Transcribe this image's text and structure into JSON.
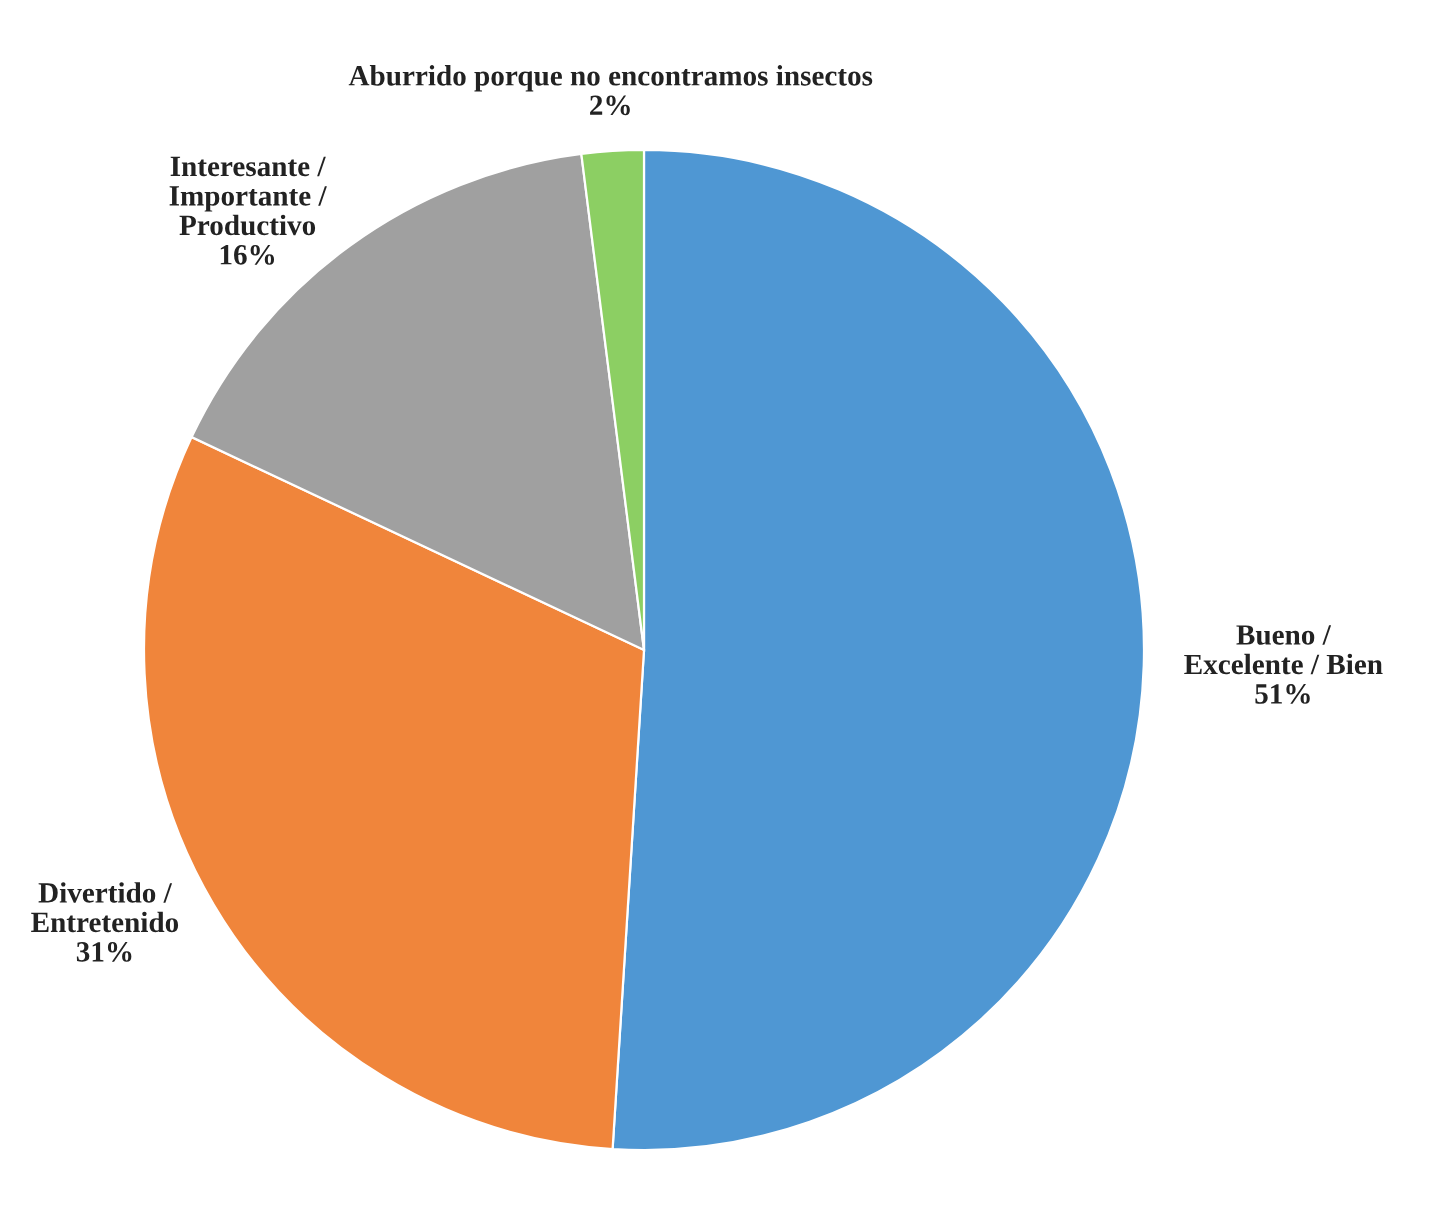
{
  "chart_data": {
    "type": "pie",
    "categories": [
      "Bueno /\nExcelente / Bien",
      "Divertido /\nEntretenido",
      "Interesante /\nImportante /\nProductivo",
      "Aburrido porque no encontramos insectos"
    ],
    "values": [
      51,
      31,
      16,
      2
    ],
    "value_labels": [
      "51%",
      "31%",
      "16%",
      "2%"
    ],
    "colors": [
      "#4f97d3",
      "#f0853b",
      "#a0a0a0",
      "#8ccf63"
    ],
    "legend": false
  }
}
